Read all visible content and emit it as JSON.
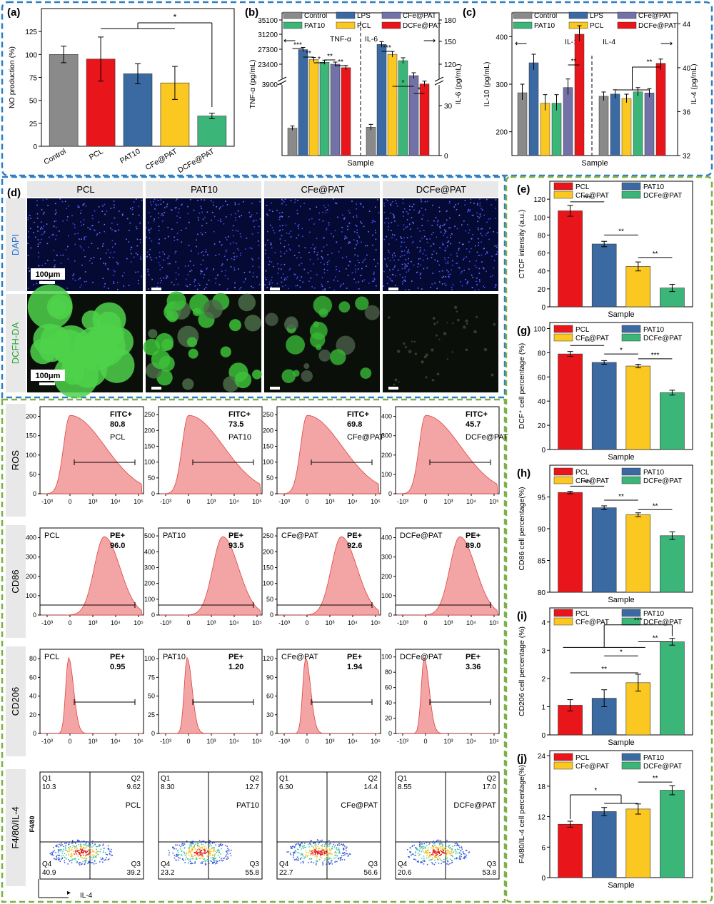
{
  "colors": {
    "gray": "#8a8a8a",
    "red": "#e8151b",
    "blue": "#3a6aa1",
    "yellow": "#fbc821",
    "green": "#3cb678",
    "purple": "#7271a8",
    "frameBlue": "#2f7fc3",
    "frameGreen": "#7fb048"
  },
  "sample_axis_label": "Sample",
  "chart_data": [
    {
      "id": "a",
      "panel_label": "(a)",
      "type": "bar",
      "ylabel": "NO production (%)",
      "categories": [
        "Control",
        "PCL",
        "PAT10",
        "CFe@PAT",
        "DCFe@PAT"
      ],
      "values": [
        100,
        95,
        79,
        69,
        33
      ],
      "errors": [
        9,
        24,
        11,
        18,
        3
      ],
      "colors": [
        "gray",
        "red",
        "blue",
        "yellow",
        "green"
      ],
      "ylim": [
        0,
        150
      ],
      "yticks": [
        "0",
        "25",
        "50",
        "75",
        "100",
        "125"
      ],
      "annotations": [
        "*"
      ]
    },
    {
      "id": "b",
      "panel_label": "(b)",
      "type": "bar",
      "xlabel": "Sample",
      "ylabel_left": "TNF-α (pg/mL)",
      "ylabel_right": "IL-6 (pg/mL)",
      "legend": [
        "Control",
        "LPS",
        "CFe@PAT",
        "PAT10",
        "PCL",
        "DCFe@PAT"
      ],
      "left_ticks": [
        "35100",
        "31200",
        "27300",
        "23400",
        "3900"
      ],
      "right_ticks": [
        "180",
        "150",
        "120",
        "30",
        "0"
      ],
      "group_labels": [
        "TNF-α",
        "IL-6"
      ],
      "series_order": [
        "Control",
        "LPS",
        "PCL",
        "PAT10",
        "CFe@PAT",
        "DCFe@PAT"
      ],
      "tnf_values": [
        1500,
        27200,
        24600,
        23900,
        23400,
        22500
      ],
      "il6_values": [
        17,
        146,
        133,
        57,
        48,
        43
      ],
      "annotations": [
        "***",
        "**",
        "*",
        "**",
        "**",
        "***",
        "*",
        "*"
      ]
    },
    {
      "id": "c",
      "panel_label": "(c)",
      "type": "bar",
      "xlabel": "Sample",
      "ylabel_left": "IL-10 (pg/mL)",
      "ylabel_right": "IL-4 (pg/mL)",
      "legend": [
        "Control",
        "LPS",
        "CFe@PAT",
        "PAT10",
        "PCL",
        "DCFe@PAT"
      ],
      "left_ticks": [
        "200",
        "300",
        "400"
      ],
      "right_ticks": [
        "32",
        "36",
        "40",
        "44"
      ],
      "group_labels": [
        "IL-10",
        "IL-4"
      ],
      "series_order": [
        "Control",
        "LPS",
        "PCL",
        "PAT10",
        "CFe@PAT",
        "DCFe@PAT"
      ],
      "il10_values": [
        282,
        345,
        260,
        260,
        293,
        405
      ],
      "il4_values": [
        37.4,
        37.6,
        37.2,
        37.8,
        37.7,
        40.4
      ],
      "annotations": [
        "**",
        "**"
      ]
    },
    {
      "id": "e",
      "panel_label": "(e)",
      "type": "bar",
      "xlabel": "Sample",
      "ylabel": "CTCF intensity (a.u.)",
      "legend": [
        "PCL",
        "PAT10",
        "CFe@PAT",
        "DCFe@PAT"
      ],
      "values": [
        107,
        70,
        45,
        21
      ],
      "errors": [
        6,
        3,
        5,
        4
      ],
      "ylim": [
        0,
        140
      ],
      "yticks": [
        "0",
        "20",
        "40",
        "60",
        "80",
        "100",
        "120"
      ],
      "annotations": [
        "***",
        "**",
        "**"
      ]
    },
    {
      "id": "g",
      "panel_label": "(g)",
      "type": "bar",
      "xlabel": "Sample",
      "ylabel": "DCF⁺ cell percentage (%)",
      "legend": [
        "PCL",
        "PAT10",
        "CFe@PAT",
        "DCFe@PAT"
      ],
      "values": [
        79,
        72,
        69,
        47
      ],
      "errors": [
        2,
        1.5,
        1.5,
        2
      ],
      "ylim": [
        0,
        105
      ],
      "yticks": [
        "0",
        "20",
        "40",
        "60",
        "80",
        "100"
      ],
      "annotations": [
        "**",
        "*",
        "***"
      ]
    },
    {
      "id": "h",
      "panel_label": "(h)",
      "type": "bar",
      "xlabel": "Sample",
      "ylabel": "CD86 cell percentage(%)",
      "legend": [
        "PCL",
        "PAT10",
        "CFe@PAT",
        "DCFe@PAT"
      ],
      "values": [
        95.7,
        93.3,
        92.2,
        88.9
      ],
      "errors": [
        0.2,
        0.3,
        0.3,
        0.6
      ],
      "ylim": [
        80,
        100
      ],
      "yticks": [
        "80",
        "85",
        "90",
        "95"
      ],
      "annotations": [
        "***",
        "**",
        "**"
      ]
    },
    {
      "id": "i",
      "panel_label": "(i)",
      "type": "bar",
      "xlabel": "Sample",
      "ylabel": "CD206 cell percentage (%)",
      "legend": [
        "PCL",
        "PAT10",
        "CFe@PAT",
        "DCFe@PAT"
      ],
      "values": [
        1.05,
        1.3,
        1.85,
        3.3
      ],
      "errors": [
        0.2,
        0.3,
        0.3,
        0.12
      ],
      "ylim": [
        0,
        4.5
      ],
      "yticks": [
        "0",
        "1",
        "2",
        "3",
        "4"
      ],
      "annotations": [
        "***",
        "**",
        "*",
        "**"
      ]
    },
    {
      "id": "j",
      "panel_label": "(j)",
      "type": "bar",
      "xlabel": "Sample",
      "ylabel": "F4/80/IL-4 cell percentage(%)",
      "legend": [
        "PCL",
        "PAT10",
        "CFe@PAT",
        "DCFe@PAT"
      ],
      "values": [
        10.5,
        13,
        13.5,
        17.2
      ],
      "errors": [
        0.6,
        0.8,
        1,
        0.9
      ],
      "ylim": [
        0,
        25
      ],
      "yticks": [
        "0",
        "6",
        "12",
        "18",
        "24"
      ],
      "annotations": [
        "*",
        "**"
      ]
    }
  ],
  "micrographs": {
    "panel_label": "(d)",
    "columns": [
      "PCL",
      "PAT10",
      "CFe@PAT",
      "DCFe@PAT"
    ],
    "rows": [
      "DAPI",
      "DCFH-DA"
    ],
    "scale_bar": "100μm"
  },
  "flow": {
    "panel_label": "(f)",
    "rows": [
      "ROS",
      "CD86",
      "CD206",
      "F4/80/IL-4"
    ],
    "samples": [
      "PCL",
      "PAT10",
      "CFe@PAT",
      "DCFe@PAT"
    ],
    "ros": {
      "tag": "FITC+",
      "values": [
        "80.8",
        "73.5",
        "69.8",
        "45.7"
      ],
      "yticks": [
        [
          "0",
          "50",
          "100",
          "150",
          "200"
        ],
        [
          "0",
          "50",
          "100",
          "150",
          "200",
          "250"
        ],
        [
          "0",
          "50",
          "100",
          "150",
          "200",
          "250"
        ],
        [
          "0",
          "100",
          "200",
          "300",
          "400"
        ]
      ]
    },
    "cd86": {
      "tag": "PE+",
      "values": [
        "96.0",
        "93.5",
        "92.6",
        "89.0"
      ],
      "yticks": [
        [
          "0",
          "100",
          "200",
          "300",
          "400"
        ],
        [
          "0",
          "100",
          "200",
          "300",
          "400",
          "500"
        ],
        [
          "0",
          "50",
          "100",
          "150",
          "200",
          "250"
        ],
        [
          "0",
          "100",
          "200",
          "300",
          "400"
        ]
      ]
    },
    "cd206": {
      "tag": "PE+",
      "values": [
        "0.95",
        "1.20",
        "1.94",
        "3.36"
      ],
      "yticks": [
        [
          "0",
          "20",
          "40",
          "60",
          "80"
        ],
        [
          "0",
          "25",
          "50",
          "75",
          "100"
        ],
        [
          "0",
          "30",
          "60",
          "90",
          "120"
        ],
        [
          "0",
          "20",
          "40",
          "60",
          "80",
          "100"
        ]
      ]
    },
    "xticks": [
      "-10³",
      "0",
      "10³",
      "10⁴",
      "10⁵"
    ],
    "quadrant_names": [
      "Q1",
      "Q2",
      "Q3",
      "Q4"
    ],
    "quadrants": [
      {
        "q1": "10.3",
        "q2": "9.62",
        "q3": "39.2",
        "q4": "40.9"
      },
      {
        "q1": "8.30",
        "q2": "12.7",
        "q3": "55.8",
        "q4": "23.2"
      },
      {
        "q1": "6.30",
        "q2": "14.4",
        "q3": "56.6",
        "q4": "22.7"
      },
      {
        "q1": "8.55",
        "q2": "17.0",
        "q3": "53.8",
        "q4": "20.6"
      }
    ],
    "axis_y": "F4/80",
    "axis_x": "IL-4"
  }
}
